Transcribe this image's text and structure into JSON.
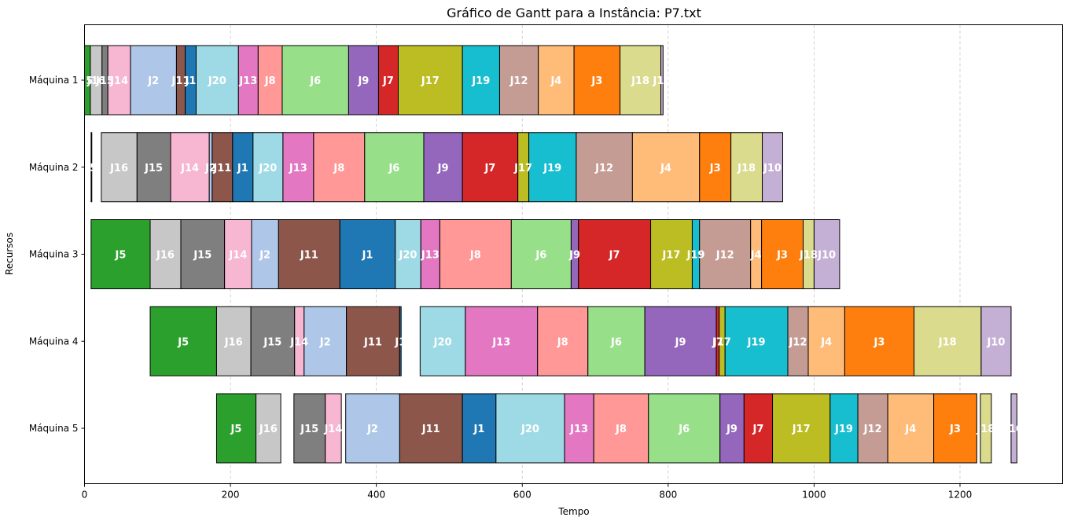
{
  "chart_data": {
    "type": "gantt",
    "title": "Gráfico de Gantt para a Instância: P7.txt",
    "xlabel": "Tempo",
    "ylabel": "Recursos",
    "xlim": [
      0,
      1335
    ],
    "xticks": [
      0,
      200,
      400,
      600,
      800,
      1000,
      1200
    ],
    "grid": "x-dashed",
    "job_colors": {
      "J1": "#1f77b4",
      "J2": "#aec7e8",
      "J3": "#ff7f0e",
      "J4": "#ffbb78",
      "J5": "#2ca02c",
      "J6": "#98df8a",
      "J7": "#d62728",
      "J8": "#ff9896",
      "J9": "#9467bd",
      "J10": "#c5b0d5",
      "J11": "#8c564b",
      "J12": "#c49c94",
      "J13": "#e377c2",
      "J14": "#f7b6d2",
      "J15": "#7f7f7f",
      "J16": "#c7c7c7",
      "J17": "#bcbd22",
      "J18": "#dbdb8d",
      "J19": "#17becf",
      "J20": "#9edae5"
    },
    "machines": [
      {
        "name": "Máquina 1",
        "tasks": [
          {
            "job": "J5",
            "start": 0,
            "end": 8
          },
          {
            "job": "J16",
            "start": 8,
            "end": 24
          },
          {
            "job": "J15",
            "start": 24,
            "end": 32
          },
          {
            "job": "J14",
            "start": 32,
            "end": 63
          },
          {
            "job": "J2",
            "start": 63,
            "end": 126
          },
          {
            "job": "J11",
            "start": 126,
            "end": 138
          },
          {
            "job": "J1",
            "start": 138,
            "end": 153
          },
          {
            "job": "J20",
            "start": 153,
            "end": 211
          },
          {
            "job": "J13",
            "start": 211,
            "end": 238
          },
          {
            "job": "J8",
            "start": 238,
            "end": 271
          },
          {
            "job": "J6",
            "start": 271,
            "end": 362
          },
          {
            "job": "J9",
            "start": 362,
            "end": 403
          },
          {
            "job": "J7",
            "start": 403,
            "end": 430
          },
          {
            "job": "J17",
            "start": 430,
            "end": 518
          },
          {
            "job": "J19",
            "start": 518,
            "end": 569
          },
          {
            "job": "J12",
            "start": 569,
            "end": 622
          },
          {
            "job": "J4",
            "start": 622,
            "end": 671
          },
          {
            "job": "J3",
            "start": 671,
            "end": 734
          },
          {
            "job": "J18",
            "start": 734,
            "end": 790
          },
          {
            "job": "J10",
            "start": 790,
            "end": 793
          }
        ]
      },
      {
        "name": "Máquina 2",
        "tasks": [
          {
            "job": "J5",
            "start": 9,
            "end": 10
          },
          {
            "job": "J16",
            "start": 23,
            "end": 72
          },
          {
            "job": "J15",
            "start": 72,
            "end": 118
          },
          {
            "job": "J14",
            "start": 118,
            "end": 171
          },
          {
            "job": "J2",
            "start": 171,
            "end": 175
          },
          {
            "job": "J11",
            "start": 175,
            "end": 203
          },
          {
            "job": "J1",
            "start": 203,
            "end": 231
          },
          {
            "job": "J20",
            "start": 231,
            "end": 272
          },
          {
            "job": "J13",
            "start": 272,
            "end": 314
          },
          {
            "job": "J8",
            "start": 314,
            "end": 384
          },
          {
            "job": "J6",
            "start": 384,
            "end": 465
          },
          {
            "job": "J9",
            "start": 465,
            "end": 518
          },
          {
            "job": "J7",
            "start": 518,
            "end": 594
          },
          {
            "job": "J17",
            "start": 594,
            "end": 609
          },
          {
            "job": "J19",
            "start": 609,
            "end": 674
          },
          {
            "job": "J12",
            "start": 674,
            "end": 751
          },
          {
            "job": "J4",
            "start": 751,
            "end": 843
          },
          {
            "job": "J3",
            "start": 843,
            "end": 886
          },
          {
            "job": "J18",
            "start": 886,
            "end": 929
          },
          {
            "job": "J10",
            "start": 929,
            "end": 957
          }
        ]
      },
      {
        "name": "Máquina 3",
        "tasks": [
          {
            "job": "J5",
            "start": 9,
            "end": 90
          },
          {
            "job": "J16",
            "start": 90,
            "end": 132
          },
          {
            "job": "J15",
            "start": 132,
            "end": 192
          },
          {
            "job": "J14",
            "start": 192,
            "end": 229
          },
          {
            "job": "J2",
            "start": 229,
            "end": 266
          },
          {
            "job": "J11",
            "start": 266,
            "end": 350
          },
          {
            "job": "J1",
            "start": 350,
            "end": 426
          },
          {
            "job": "J20",
            "start": 426,
            "end": 461
          },
          {
            "job": "J13",
            "start": 461,
            "end": 487
          },
          {
            "job": "J8",
            "start": 487,
            "end": 585
          },
          {
            "job": "J6",
            "start": 585,
            "end": 667
          },
          {
            "job": "J9",
            "start": 667,
            "end": 677
          },
          {
            "job": "J7",
            "start": 677,
            "end": 776
          },
          {
            "job": "J17",
            "start": 776,
            "end": 833
          },
          {
            "job": "J19",
            "start": 833,
            "end": 843
          },
          {
            "job": "J12",
            "start": 843,
            "end": 913
          },
          {
            "job": "J4",
            "start": 913,
            "end": 928
          },
          {
            "job": "J3",
            "start": 928,
            "end": 985
          },
          {
            "job": "J18",
            "start": 985,
            "end": 1000
          },
          {
            "job": "J10",
            "start": 1000,
            "end": 1035
          }
        ]
      },
      {
        "name": "Máquina 4",
        "tasks": [
          {
            "job": "J5",
            "start": 90,
            "end": 181
          },
          {
            "job": "J16",
            "start": 181,
            "end": 228
          },
          {
            "job": "J15",
            "start": 228,
            "end": 288
          },
          {
            "job": "J14",
            "start": 288,
            "end": 301
          },
          {
            "job": "J2",
            "start": 301,
            "end": 359
          },
          {
            "job": "J11",
            "start": 359,
            "end": 432
          },
          {
            "job": "J1",
            "start": 432,
            "end": 434
          },
          {
            "job": "J20",
            "start": 460,
            "end": 522
          },
          {
            "job": "J13",
            "start": 522,
            "end": 621
          },
          {
            "job": "J8",
            "start": 621,
            "end": 690
          },
          {
            "job": "J6",
            "start": 690,
            "end": 768
          },
          {
            "job": "J9",
            "start": 768,
            "end": 866
          },
          {
            "job": "J7",
            "start": 866,
            "end": 870
          },
          {
            "job": "J17",
            "start": 870,
            "end": 878
          },
          {
            "job": "J19",
            "start": 878,
            "end": 964
          },
          {
            "job": "J12",
            "start": 964,
            "end": 992
          },
          {
            "job": "J4",
            "start": 992,
            "end": 1042
          },
          {
            "job": "J3",
            "start": 1042,
            "end": 1137
          },
          {
            "job": "J18",
            "start": 1137,
            "end": 1229
          },
          {
            "job": "J10",
            "start": 1229,
            "end": 1270
          }
        ]
      },
      {
        "name": "Máquina 5",
        "tasks": [
          {
            "job": "J5",
            "start": 181,
            "end": 235
          },
          {
            "job": "J16",
            "start": 235,
            "end": 269
          },
          {
            "job": "J15",
            "start": 287,
            "end": 330
          },
          {
            "job": "J14",
            "start": 330,
            "end": 352
          },
          {
            "job": "J2",
            "start": 358,
            "end": 432
          },
          {
            "job": "J11",
            "start": 432,
            "end": 518
          },
          {
            "job": "J1",
            "start": 518,
            "end": 564
          },
          {
            "job": "J20",
            "start": 564,
            "end": 658
          },
          {
            "job": "J13",
            "start": 658,
            "end": 698
          },
          {
            "job": "J8",
            "start": 698,
            "end": 773
          },
          {
            "job": "J6",
            "start": 773,
            "end": 871
          },
          {
            "job": "J9",
            "start": 871,
            "end": 904
          },
          {
            "job": "J7",
            "start": 904,
            "end": 943
          },
          {
            "job": "J17",
            "start": 943,
            "end": 1022
          },
          {
            "job": "J19",
            "start": 1022,
            "end": 1060
          },
          {
            "job": "J12",
            "start": 1060,
            "end": 1101
          },
          {
            "job": "J4",
            "start": 1101,
            "end": 1164
          },
          {
            "job": "J3",
            "start": 1164,
            "end": 1223
          },
          {
            "job": "J18",
            "start": 1228,
            "end": 1243
          },
          {
            "job": "J10",
            "start": 1270,
            "end": 1278
          }
        ]
      }
    ]
  }
}
